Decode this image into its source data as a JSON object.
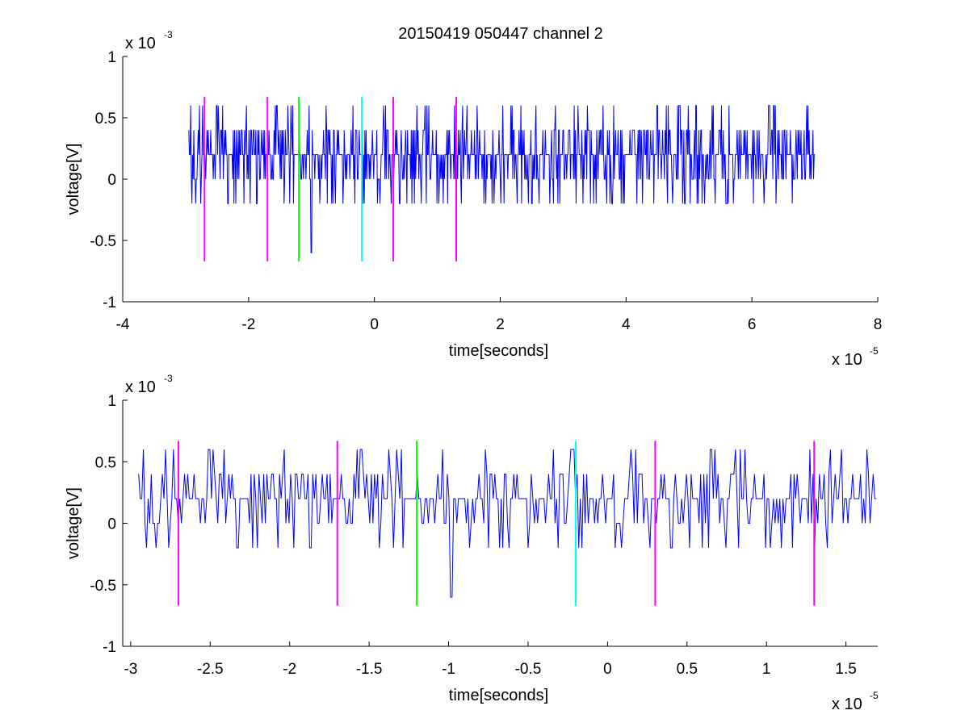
{
  "figure": {
    "title": "20150419 050447 channel 2"
  },
  "colors": {
    "signal": "#0000ff",
    "magenta_marker": "#ff00ff",
    "green_marker": "#00ff00",
    "cyan_marker": "#00ffff",
    "axes": "#000000",
    "background": "#ffffff"
  },
  "chart_data": [
    {
      "type": "line",
      "title": "20150419 050447 channel 2",
      "xlabel": "time[seconds]",
      "ylabel": "voltage[V]",
      "x_multiplier_label": "x 10",
      "x_multiplier_exp": "-5",
      "y_multiplier_label": "x 10",
      "y_multiplier_exp": "-3",
      "xlim": [
        -4,
        8
      ],
      "ylim": [
        -1,
        1
      ],
      "xticks": [
        -4,
        -2,
        0,
        2,
        4,
        6,
        8
      ],
      "xtick_labels": [
        "-4",
        "-2",
        "0",
        "2",
        "4",
        "6",
        "8"
      ],
      "yticks": [
        -1,
        -0.5,
        0,
        0.5,
        1
      ],
      "ytick_labels": [
        "-1",
        "-0.5",
        "0",
        "0.5",
        "1"
      ],
      "grid": false,
      "series": [
        {
          "style": "noise-trace",
          "x_range": [
            -2.95,
            7.0
          ],
          "baseline": 0.2,
          "levels": [
            -0.2,
            0,
            0.2,
            0.4,
            0.6
          ],
          "notable_dips": [
            {
              "x": -1.0,
              "y": -0.6
            }
          ],
          "notable_peaks": [
            {
              "x": 6.35,
              "y": 0.6
            },
            {
              "x": 4.85,
              "y": 0.6
            },
            {
              "x": -1.55,
              "y": 0.6
            }
          ]
        }
      ],
      "markers": [
        {
          "x": -2.7,
          "y_range": [
            -0.67,
            0.67
          ],
          "color": "magenta"
        },
        {
          "x": -1.7,
          "y_range": [
            -0.67,
            0.67
          ],
          "color": "magenta"
        },
        {
          "x": -1.2,
          "y_range": [
            -0.67,
            0.67
          ],
          "color": "green"
        },
        {
          "x": -0.2,
          "y_range": [
            -0.67,
            0.67
          ],
          "color": "cyan"
        },
        {
          "x": 0.3,
          "y_range": [
            -0.67,
            0.67
          ],
          "color": "magenta"
        },
        {
          "x": 1.3,
          "y_range": [
            -0.67,
            0.67
          ],
          "color": "magenta"
        }
      ]
    },
    {
      "type": "line",
      "title": "",
      "xlabel": "time[seconds]",
      "ylabel": "voltage[V]",
      "x_multiplier_label": "x 10",
      "x_multiplier_exp": "-5",
      "y_multiplier_label": "x 10",
      "y_multiplier_exp": "-3",
      "xlim": [
        -3.05,
        1.7
      ],
      "ylim": [
        -1,
        1
      ],
      "xticks": [
        -3,
        -2.5,
        -2,
        -1.5,
        -1,
        -0.5,
        0,
        0.5,
        1,
        1.5
      ],
      "xtick_labels": [
        "-3",
        "-2.5",
        "-2",
        "-1.5",
        "-1",
        "-0.5",
        "0",
        "0.5",
        "1",
        "1.5"
      ],
      "yticks": [
        -1,
        -0.5,
        0,
        0.5,
        1
      ],
      "ytick_labels": [
        "-1",
        "-0.5",
        "0",
        "0.5",
        "1"
      ],
      "grid": false,
      "series": [
        {
          "style": "noise-trace",
          "x_range": [
            -2.95,
            1.7
          ],
          "baseline": 0.2,
          "levels": [
            -0.2,
            0,
            0.2,
            0.4,
            0.6
          ],
          "notable_dips": [
            {
              "x": -0.98,
              "y": -0.6
            }
          ],
          "notable_peaks": [
            {
              "x": -1.55,
              "y": 0.6
            },
            {
              "x": -0.22,
              "y": 0.6
            },
            {
              "x": 0.65,
              "y": 0.6
            }
          ]
        }
      ],
      "markers": [
        {
          "x": -2.7,
          "y_range": [
            -0.67,
            0.67
          ],
          "color": "magenta"
        },
        {
          "x": -1.7,
          "y_range": [
            -0.67,
            0.67
          ],
          "color": "magenta"
        },
        {
          "x": -1.2,
          "y_range": [
            -0.67,
            0.67
          ],
          "color": "green"
        },
        {
          "x": -0.2,
          "y_range": [
            -0.67,
            0.67
          ],
          "color": "cyan"
        },
        {
          "x": 0.3,
          "y_range": [
            -0.67,
            0.67
          ],
          "color": "magenta"
        },
        {
          "x": 1.3,
          "y_range": [
            -0.67,
            0.67
          ],
          "color": "magenta"
        }
      ]
    }
  ]
}
